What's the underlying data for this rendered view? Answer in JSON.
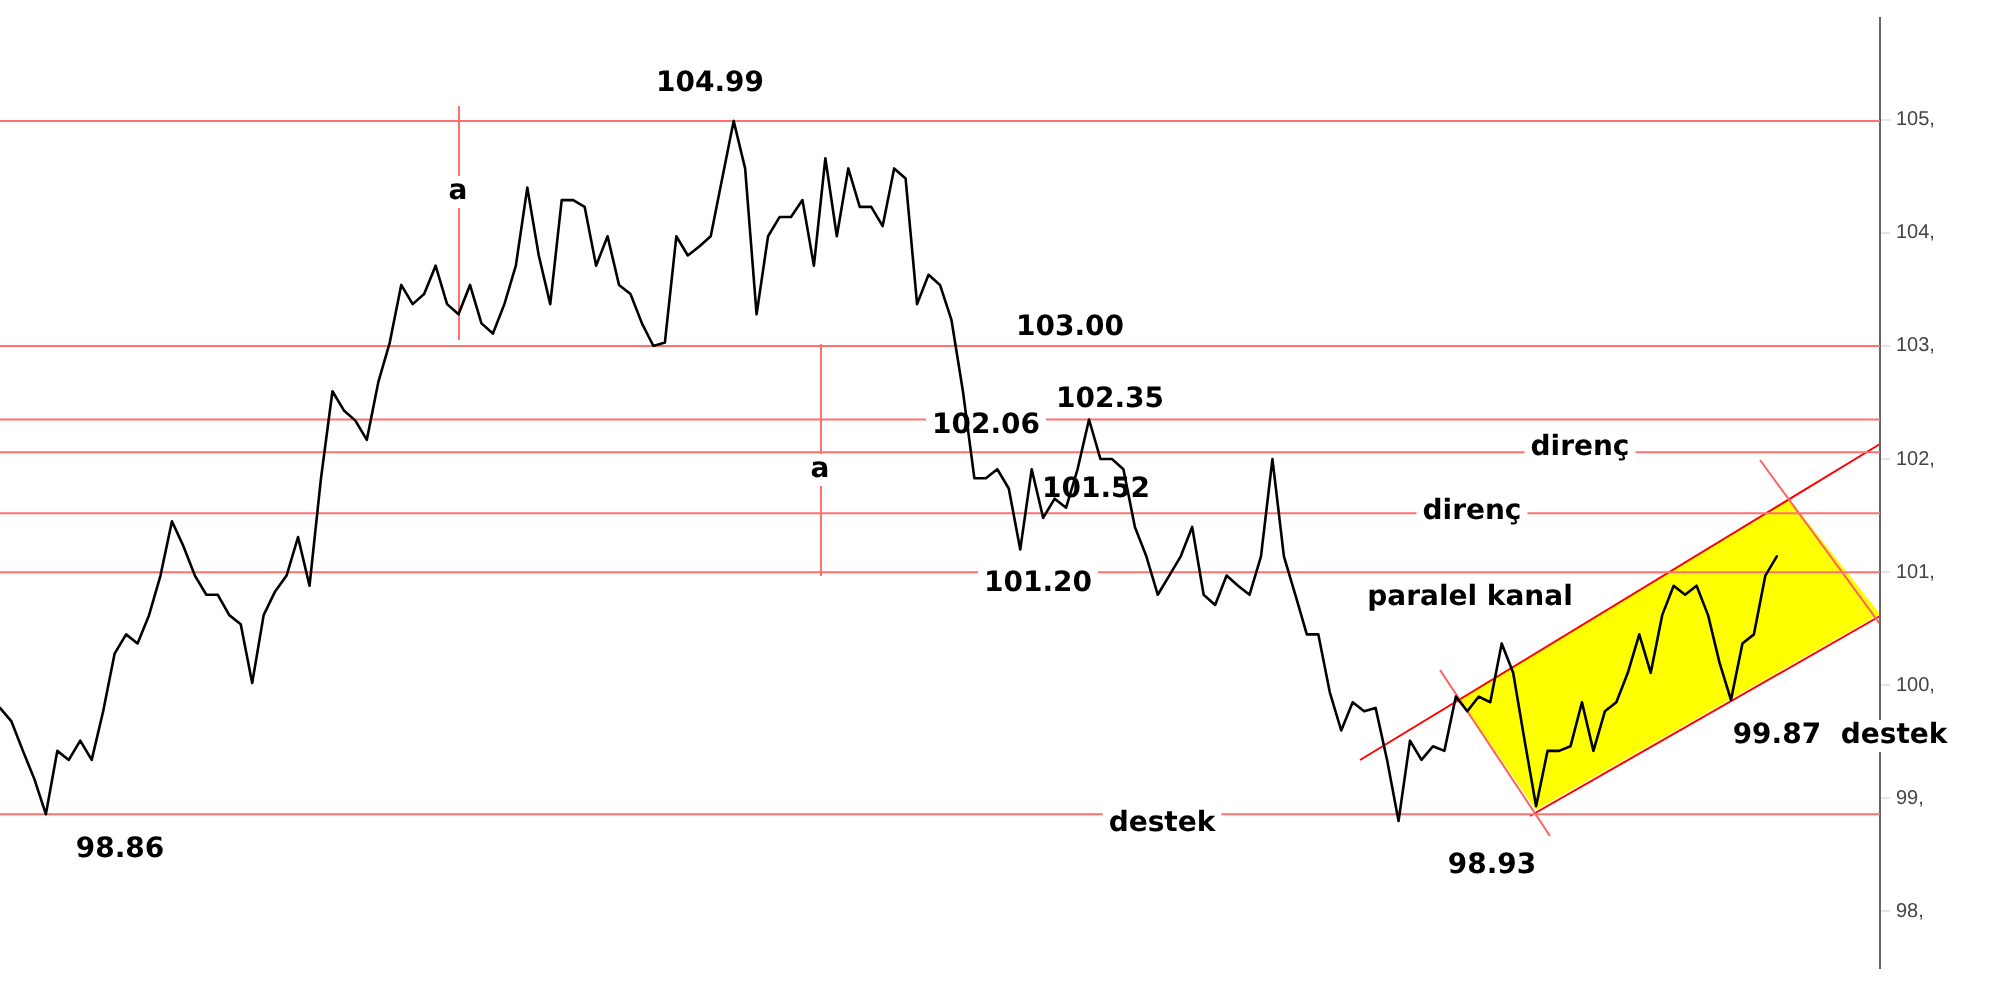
{
  "chart_data": {
    "type": "line",
    "ylim": [
      97.5,
      105.9
    ],
    "categories": [
      null,
      null,
      null,
      null,
      null,
      null,
      null,
      null,
      null,
      null,
      null,
      null,
      null,
      null,
      null,
      null,
      null,
      null,
      null,
      null,
      null,
      null,
      null,
      null,
      null,
      null,
      null,
      null,
      null,
      null,
      null,
      null,
      null,
      null,
      null,
      null,
      null,
      null,
      null,
      null,
      null,
      null,
      null,
      null,
      null,
      null,
      null,
      null,
      null,
      null,
      null,
      null,
      null,
      null,
      null,
      null,
      null,
      null,
      null,
      null,
      null,
      null,
      null,
      null,
      null,
      null,
      null,
      null,
      null,
      null,
      null,
      null,
      null,
      null,
      null,
      null,
      null,
      null,
      null,
      null,
      null,
      null,
      null,
      null,
      null,
      null,
      null,
      null,
      null,
      null,
      null,
      null,
      null,
      null,
      null,
      null,
      null,
      null,
      null,
      null,
      null,
      null,
      null,
      null,
      null,
      null,
      null,
      null,
      null,
      null,
      null,
      null,
      null,
      null,
      null,
      null,
      null,
      null,
      null,
      null,
      null,
      null,
      null,
      null,
      null,
      null,
      null,
      null,
      null,
      null,
      null,
      null,
      null,
      null,
      null,
      null,
      null,
      null,
      null,
      null,
      null,
      null,
      null,
      null,
      null,
      null,
      null,
      null,
      null,
      null,
      null,
      null,
      null,
      null,
      null,
      null,
      null,
      null,
      null,
      null,
      null,
      null,
      null,
      null,
      null
    ],
    "yticks": [
      {
        "value": 98,
        "label": "98,"
      },
      {
        "value": 99,
        "label": "99,"
      },
      {
        "value": 100,
        "label": "100,"
      },
      {
        "value": 101,
        "label": "101,"
      },
      {
        "value": 102,
        "label": "102,"
      },
      {
        "value": 103,
        "label": "103,"
      },
      {
        "value": 104,
        "label": "104,"
      },
      {
        "value": 105,
        "label": "105,"
      }
    ],
    "tick_labels": "y",
    "grid": false,
    "legend": false,
    "marker": "none",
    "line_style": "solid",
    "series": [
      {
        "color": "#000000",
        "values": [
          99.8,
          99.68,
          99.42,
          99.17,
          98.86,
          99.42,
          99.34,
          99.51,
          99.34,
          99.77,
          100.28,
          100.45,
          100.37,
          100.62,
          100.97,
          101.45,
          101.23,
          100.97,
          100.8,
          100.8,
          100.62,
          100.54,
          100.02,
          100.62,
          100.83,
          100.97,
          101.31,
          100.88,
          101.83,
          102.6,
          102.43,
          102.34,
          102.17,
          102.68,
          103.03,
          103.54,
          103.37,
          103.46,
          103.71,
          103.37,
          103.28,
          103.54,
          103.2,
          103.11,
          103.37,
          103.71,
          104.4,
          103.8,
          103.37,
          104.29,
          104.29,
          104.23,
          103.71,
          103.97,
          103.54,
          103.46,
          103.2,
          103.0,
          103.03,
          103.97,
          103.8,
          103.88,
          103.97,
          104.48,
          104.99,
          104.57,
          103.28,
          103.97,
          104.14,
          104.14,
          104.29,
          103.71,
          104.66,
          103.97,
          104.57,
          104.23,
          104.23,
          104.06,
          104.57,
          104.48,
          103.37,
          103.63,
          103.54,
          103.23,
          102.6,
          101.83,
          101.83,
          101.91,
          101.74,
          101.2,
          101.91,
          101.48,
          101.65,
          101.57,
          101.91,
          102.35,
          102.0,
          102.0,
          101.91,
          101.4,
          101.14,
          100.8,
          100.97,
          101.14,
          101.4,
          100.8,
          100.71,
          100.97,
          100.88,
          100.8,
          101.14,
          102.0,
          101.14,
          100.8,
          100.45,
          100.45,
          99.94,
          99.6,
          99.85,
          99.77,
          99.8,
          99.34,
          98.8,
          99.51,
          99.34,
          99.46,
          99.42,
          99.9,
          99.77,
          99.9,
          99.85,
          100.37,
          100.11,
          99.51,
          98.93,
          99.42,
          99.42,
          99.46,
          99.85,
          99.42,
          99.77,
          99.85,
          100.11,
          100.45,
          100.11,
          100.62,
          100.88,
          100.8,
          100.88,
          100.62,
          100.2,
          99.87,
          100.37,
          100.45,
          100.97,
          101.14,
          null,
          null,
          null,
          null,
          null,
          null,
          null,
          null,
          null
        ]
      }
    ],
    "ref_lines": [
      {
        "axis": "y",
        "value": 104.99,
        "color": "#ff7070"
      },
      {
        "axis": "y",
        "value": 103.0,
        "color": "#ff7070"
      },
      {
        "axis": "y",
        "value": 102.35,
        "color": "#ff7070"
      },
      {
        "axis": "y",
        "value": 102.06,
        "color": "#ff7070"
      },
      {
        "axis": "y",
        "value": 101.52,
        "color": "#ff7070"
      },
      {
        "axis": "y",
        "value": 101.0,
        "color": "#ff7070"
      },
      {
        "axis": "y",
        "value": 98.86,
        "color": "#ff7070"
      }
    ],
    "annotations": [
      "104.99",
      "a",
      "a",
      "103.00",
      "102.35",
      "102.06",
      "101.52",
      "101.20",
      "direnç",
      "direnç",
      "paralel kanal",
      "99.87  destek",
      "destek",
      "98.93",
      "98.86"
    ]
  }
}
